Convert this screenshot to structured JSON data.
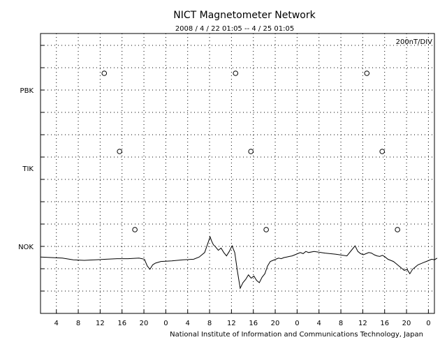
{
  "chart_data": {
    "type": "line",
    "title": "NICT Magnetometer Network",
    "subtitle": "2008 / 4 / 22  01:05 -- 4 / 25  01:05",
    "scale_label": "200nT/DIV",
    "footer": "National Institute of Information and Communications Technology, Japan",
    "grid": true,
    "x_tick_labels": [
      "4",
      "8",
      "12",
      "16",
      "20",
      "0",
      "4",
      "8",
      "12",
      "16",
      "20",
      "0",
      "4",
      "8",
      "12",
      "16",
      "20",
      "0"
    ],
    "stations": [
      {
        "name": "PBK",
        "noon_markers_ut_hours": [
          11.9,
          35.9,
          59.9
        ]
      },
      {
        "name": "TIK",
        "noon_markers_ut_hours": [
          14.7,
          38.7,
          62.7
        ]
      },
      {
        "name": "NOK",
        "noon_markers_ut_hours": [
          17.5,
          41.5,
          65.5
        ]
      }
    ],
    "series": [
      {
        "name": "NOK",
        "x_hours": [
          0.0,
          2.0,
          4.0,
          6.0,
          8.0,
          10.0,
          12.0,
          14.0,
          16.0,
          18.0,
          19.0,
          19.5,
          20.0,
          20.5,
          21.0,
          22.0,
          24.0,
          26.0,
          28.0,
          29.0,
          30.0,
          31.0,
          31.3,
          31.6,
          32.0,
          32.5,
          33.0,
          33.5,
          34.0,
          34.5,
          35.0,
          35.5,
          36.0,
          36.5,
          37.0,
          37.5,
          38.0,
          38.5,
          39.0,
          39.5,
          40.0,
          40.5,
          41.0,
          41.5,
          42.0,
          42.5,
          43.0,
          43.5,
          44.0,
          44.5,
          45.0,
          45.5,
          46.0,
          46.5,
          47.0,
          47.5,
          48.0,
          48.5,
          49.0,
          50.0,
          52.0,
          54.0,
          56.0,
          57.0,
          57.5,
          58.0,
          58.5,
          59.0,
          59.5,
          60.0,
          60.5,
          61.0,
          61.5,
          62.0,
          62.5,
          63.0,
          63.5,
          64.0,
          64.5,
          65.0,
          65.5,
          66.0,
          66.5,
          67.0,
          67.5,
          68.0,
          68.5,
          69.0,
          69.5,
          70.0,
          70.5,
          71.0,
          71.5,
          72.0,
          72.5
        ],
        "values_nT": [
          -20,
          -25,
          -30,
          -45,
          -50,
          -45,
          -40,
          -35,
          -35,
          -30,
          -40,
          -100,
          -130,
          -90,
          -75,
          -60,
          -55,
          -45,
          -40,
          -20,
          20,
          160,
          120,
          90,
          70,
          40,
          60,
          20,
          -10,
          30,
          80,
          20,
          -150,
          -300,
          -250,
          -220,
          -180,
          -210,
          -190,
          -230,
          -250,
          -200,
          -170,
          -100,
          -60,
          -50,
          -40,
          -30,
          -35,
          -25,
          -20,
          -15,
          -10,
          0,
          10,
          20,
          10,
          30,
          20,
          30,
          15,
          5,
          -10,
          50,
          80,
          30,
          10,
          0,
          10,
          20,
          15,
          0,
          -10,
          -15,
          -5,
          -20,
          -40,
          -50,
          -60,
          -80,
          -100,
          -120,
          -140,
          -130,
          -170,
          -130,
          -110,
          -90,
          -80,
          -70,
          -60,
          -50,
          -40,
          -45,
          -30
        ],
        "gaps_after_index": []
      }
    ]
  }
}
